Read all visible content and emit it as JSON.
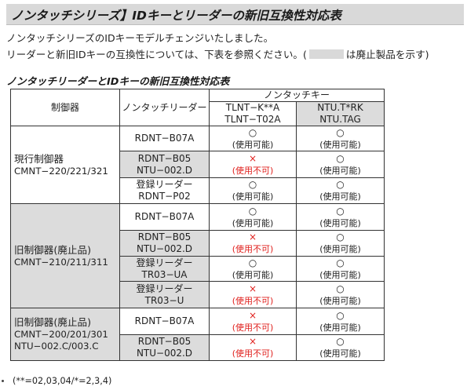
{
  "header": {
    "title": "ノンタッチシリーズ】IDキーとリーダーの新旧互換性対応表"
  },
  "intro": {
    "line1": "ノンタッチシリーズのIDキーモデルチェンジいたしました。",
    "line2_before": "リーダーと新旧IDキーの互換性については、下表を参照ください。(",
    "line2_after": "は廃止製品を示す)"
  },
  "section_title": "ノンタッチリーダーとIDキーの新旧互換性対応表",
  "table": {
    "col_controller": "制御器",
    "col_reader": "ノンタッチリーダー",
    "col_key_group": "ノンタッチキー",
    "key1_line1": "TLNT−K**A",
    "key1_line2": "TLNT−T02A",
    "key2_line1": "NTU.T*RK",
    "key2_line2": "NTU.TAG",
    "ok": "○",
    "ng": "×",
    "ok_note": "(使用可能)",
    "ng_note": "(使用不可)",
    "groups": [
      {
        "name": "現行制御器",
        "model_line1": "CMNT−220/221/321",
        "model_line2": "",
        "rows": [
          {
            "reader_line1": "RDNT−B07A",
            "reader_line2": ""
          },
          {
            "reader_line1": "RDNT−B05",
            "reader_line2": "NTU−002.D"
          },
          {
            "reader_line1": "登録リーダー",
            "reader_line2": "RDNT−P02"
          }
        ]
      },
      {
        "name": "旧制御器(廃止品)",
        "model_line1": "CMNT−210/211/311",
        "model_line2": "",
        "rows": [
          {
            "reader_line1": "RDNT−B07A",
            "reader_line2": ""
          },
          {
            "reader_line1": "RDNT−B05",
            "reader_line2": "NTU−002.D"
          },
          {
            "reader_line1": "登録リーダー",
            "reader_line2": "TR03−UA"
          },
          {
            "reader_line1": "登録リーダー",
            "reader_line2": "TR03−U"
          }
        ]
      },
      {
        "name": "旧制御器(廃止品)",
        "model_line1": "CMNT−200/201/301",
        "model_line2": "NTU−002.C/003.C",
        "rows": [
          {
            "reader_line1": "RDNT−B07A",
            "reader_line2": ""
          },
          {
            "reader_line1": "RDNT−B05",
            "reader_line2": "NTU−002.D"
          }
        ]
      }
    ]
  },
  "footnote": "(**=02,03,04/*=2,3,4)"
}
